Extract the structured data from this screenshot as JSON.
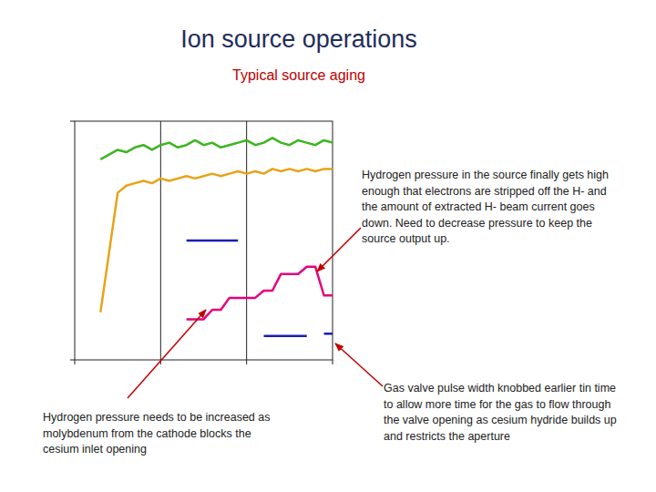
{
  "chart_data": {
    "type": "line",
    "title": "Ion source operations",
    "subtitle": "Typical source aging",
    "x": [
      0,
      2,
      4,
      6,
      8,
      10,
      12,
      14,
      16,
      18,
      20,
      22,
      24,
      26,
      28,
      30,
      32,
      34,
      36,
      38,
      40,
      42,
      44,
      46,
      48,
      50,
      52,
      54,
      56,
      58,
      60
    ],
    "xlim": [
      0,
      60
    ],
    "ylim": [
      0,
      100
    ],
    "xticks": [
      0,
      20,
      40,
      60
    ],
    "yticks": [
      0,
      100
    ],
    "grid": true,
    "tick_labels": false,
    "series": [
      {
        "color": "#3cb521",
        "values": [
          null,
          null,
          null,
          84,
          86,
          88,
          87,
          89,
          90,
          88,
          90,
          91,
          89,
          90,
          92,
          90,
          91,
          89,
          90,
          91,
          92,
          90,
          91,
          93,
          91,
          90,
          92,
          91,
          90,
          92,
          91
        ]
      },
      {
        "color": "#e8a317",
        "values": [
          null,
          null,
          null,
          20,
          45,
          70,
          73,
          74,
          75,
          74,
          76,
          75,
          76,
          77,
          76,
          77,
          78,
          77,
          78,
          79,
          78,
          79,
          78,
          80,
          79,
          80,
          79,
          80,
          79,
          80,
          80
        ]
      },
      {
        "color": "#e6007e",
        "values": [
          null,
          null,
          null,
          null,
          null,
          null,
          null,
          null,
          null,
          null,
          null,
          null,
          null,
          17,
          17,
          17,
          21,
          21,
          26,
          26,
          26,
          26,
          29,
          29,
          36,
          36,
          36,
          39,
          39,
          27,
          27
        ]
      },
      {
        "color": "#1c1cb4",
        "values": [
          null,
          null,
          null,
          null,
          null,
          null,
          null,
          null,
          null,
          null,
          null,
          null,
          null,
          50,
          50,
          50,
          50,
          50,
          50,
          50,
          null,
          null,
          10,
          10,
          10,
          10,
          10,
          10,
          null,
          11,
          11
        ]
      }
    ],
    "annotations": [
      {
        "lines": [
          "Hydrogen pressure in the source finally gets high",
          "enough that electrons are stripped off the H- and",
          "the amount of extracted H- beam current goes",
          "down.  Need to decrease pressure to keep the",
          "source output up."
        ]
      },
      {
        "lines": [
          "Hydrogen pressure needs to be increased as",
          "molybdenum from the cathode blocks the",
          "cesium inlet opening"
        ]
      },
      {
        "lines": [
          "Gas valve pulse width knobbed earlier tin time",
          "to allow more time for the gas to flow through",
          "the valve opening as cesium hydride builds up",
          "and restricts the aperture"
        ]
      }
    ]
  }
}
